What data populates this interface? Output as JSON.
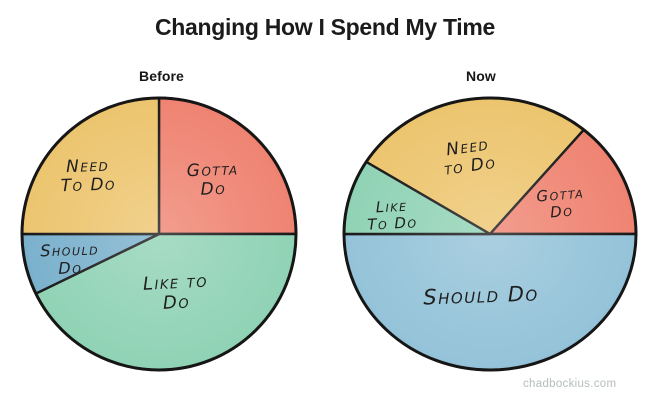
{
  "title": "Changing How I Spend My Time",
  "watermark": "chadbockius.com",
  "colors": {
    "background": "#ffffff",
    "outline": "#161616",
    "red": "#ef8270",
    "yellow": "#ecc46d",
    "teal": "#8fd2b4",
    "blue_before": "#79b0cc",
    "blue_now": "#93c2d8"
  },
  "chart_data": [
    {
      "type": "pie",
      "title": "Before",
      "center": [
        159,
        234
      ],
      "radius": [
        137,
        136
      ],
      "slices": [
        {
          "label": "Gotta Do",
          "value": 25,
          "color": "#ef8270",
          "start": 0,
          "sweep": 90,
          "label_lines": [
            "Gotta",
            "Do"
          ],
          "label_pos": [
            213,
            180
          ],
          "label_size": 17,
          "label_rot": -2
        },
        {
          "label": "Like To Do",
          "value": 42,
          "color": "#8fd2b4",
          "start": 90,
          "sweep": 154,
          "label_lines": [
            "Like to",
            "Do"
          ],
          "label_pos": [
            176,
            293
          ],
          "label_size": 18,
          "label_rot": -3
        },
        {
          "label": "Should Do",
          "value": 8,
          "color": "#79b0cc",
          "start": 244,
          "sweep": 26,
          "label_lines": [
            "Should",
            "Do"
          ],
          "label_pos": [
            70,
            259
          ],
          "label_size": 16,
          "label_rot": -2
        },
        {
          "label": "Need To Do",
          "value": 25,
          "color": "#ecc46d",
          "start": 270,
          "sweep": 90,
          "label_lines": [
            "Need",
            "To Do"
          ],
          "label_pos": [
            88,
            176
          ],
          "label_size": 17,
          "label_rot": -2
        }
      ]
    },
    {
      "type": "pie",
      "title": "Now",
      "center": [
        490,
        234
      ],
      "radius": [
        146,
        136
      ],
      "slices": [
        {
          "label": "Need To Do",
          "value": 27,
          "color": "#ecc46d",
          "start": 302,
          "sweep": 98,
          "label_lines": [
            "Need",
            "to Do"
          ],
          "label_pos": [
            469,
            157
          ],
          "label_size": 17,
          "label_rot": -8
        },
        {
          "label": "Gotta Do",
          "value": 14,
          "color": "#ef8270",
          "start": 40,
          "sweep": 50,
          "label_lines": [
            "Gotta",
            "Do"
          ],
          "label_pos": [
            561,
            203
          ],
          "label_size": 15,
          "label_rot": -5
        },
        {
          "label": "Should Do",
          "value": 50,
          "color": "#93c2d8",
          "start": 90,
          "sweep": 180,
          "label_lines": [
            "Should Do"
          ],
          "label_pos": [
            481,
            296
          ],
          "label_size": 21,
          "label_rot": -2
        },
        {
          "label": "Like To Do",
          "value": 9,
          "color": "#8fd2b4",
          "start": 270,
          "sweep": 32,
          "label_lines": [
            "Like",
            "To Do"
          ],
          "label_pos": [
            392,
            215
          ],
          "label_size": 15,
          "label_rot": -3
        }
      ]
    }
  ]
}
